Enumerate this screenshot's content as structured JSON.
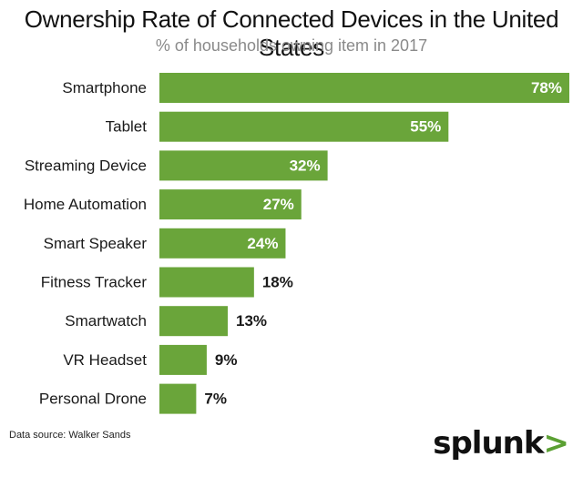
{
  "chart_data": {
    "type": "bar",
    "orientation": "horizontal",
    "title": "Ownership Rate of Connected Devices in the United States",
    "subtitle": "% of households owning item in 2017",
    "categories": [
      "Smartphone",
      "Tablet",
      "Streaming Device",
      "Home Automation",
      "Smart Speaker",
      "Fitness Tracker",
      "Smartwatch",
      "VR Headset",
      "Personal Drone"
    ],
    "values": [
      78,
      55,
      32,
      27,
      24,
      18,
      13,
      9,
      7
    ],
    "value_labels": [
      "78%",
      "55%",
      "32%",
      "27%",
      "24%",
      "18%",
      "13%",
      "9%",
      "7%"
    ],
    "xlim": [
      0,
      78
    ],
    "grid": false,
    "legend": "none",
    "bar_color": "#6aa53a",
    "inside_label_color": "#ffffff",
    "outside_label_color": "#1a1a1a"
  },
  "footer": {
    "source": "Data source: Walker Sands",
    "logo_text": "splunk",
    "logo_mark": ">"
  }
}
